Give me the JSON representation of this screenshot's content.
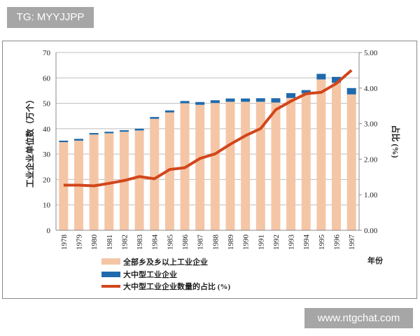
{
  "tag": "TG: MYYJJPP",
  "watermark": "www.ntgchat.com",
  "chart_data": {
    "type": "bar",
    "categories": [
      "1978",
      "1979",
      "1980",
      "1981",
      "1982",
      "1983",
      "1984",
      "1985",
      "1986",
      "1987",
      "1988",
      "1989",
      "1990",
      "1991",
      "1992",
      "1993",
      "1994",
      "1995",
      "1996",
      "1997"
    ],
    "xlabel": "年份",
    "ylabel": "工业企业单位数（万个）",
    "ylabel_right": "占比 (%)",
    "ylim": [
      0,
      70
    ],
    "yticks": [
      "0",
      "10",
      "20",
      "30",
      "40",
      "50",
      "60",
      "70"
    ],
    "ylim_right": [
      0,
      5
    ],
    "yticks_right": [
      "0.00",
      "1.00",
      "2.00",
      "3.00",
      "4.00",
      "5.00"
    ],
    "grid": true,
    "legend_placement": "bottom",
    "stacked": true,
    "series": [
      {
        "name": "全部乡及乡以上工业企业",
        "type": "bar",
        "color": "#f4c6a6",
        "axis": "left",
        "values": [
          34.7,
          35.3,
          37.7,
          38.2,
          38.8,
          39.3,
          43.9,
          46.4,
          50.0,
          49.4,
          50.1,
          50.6,
          50.6,
          50.6,
          50.3,
          52.1,
          53.9,
          59.4,
          58.1,
          53.5
        ]
      },
      {
        "name": "大中型工业企业",
        "type": "bar",
        "color": "#1f6aad",
        "axis": "left",
        "values": [
          0.6,
          0.7,
          0.6,
          0.6,
          0.6,
          0.7,
          0.7,
          0.8,
          0.9,
          1.1,
          1.1,
          1.3,
          1.3,
          1.4,
          1.7,
          1.9,
          1.3,
          2.2,
          2.3,
          2.5
        ]
      },
      {
        "name": "大中型工业企业数量的占比 (%)",
        "type": "line",
        "color": "#d2461b",
        "axis": "right",
        "values": [
          1.27,
          1.27,
          1.25,
          1.32,
          1.4,
          1.51,
          1.45,
          1.71,
          1.76,
          2.02,
          2.15,
          2.42,
          2.66,
          2.86,
          3.39,
          3.63,
          3.84,
          3.88,
          4.13,
          4.5
        ]
      }
    ]
  }
}
